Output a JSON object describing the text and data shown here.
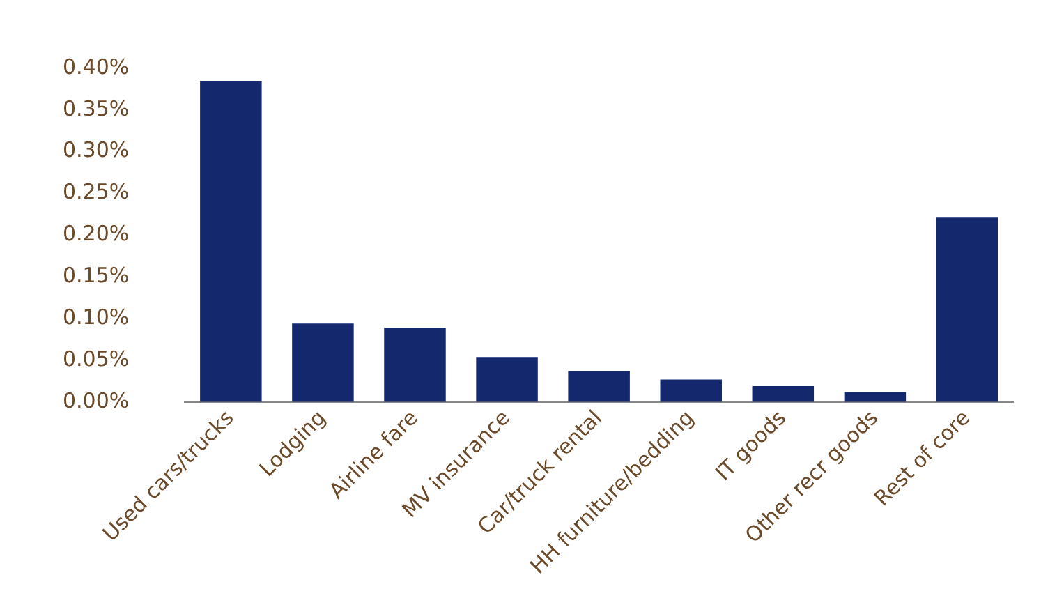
{
  "chart_data": {
    "type": "bar",
    "categories": [
      "Used cars/trucks",
      "Lodging",
      "Airline fare",
      "MV insurance",
      "Car/truck rental",
      "HH furniture/bedding",
      "IT goods",
      "Other recr goods",
      "Rest of core"
    ],
    "values": [
      0.385,
      0.094,
      0.089,
      0.054,
      0.037,
      0.027,
      0.019,
      0.012,
      0.221
    ],
    "color": "#14286e",
    "ylim": [
      0,
      0.4
    ],
    "yticks": [
      {
        "value": 0,
        "label": "0.00%"
      },
      {
        "value": 0.05,
        "label": "0.05%"
      },
      {
        "value": 0.1,
        "label": "0.10%"
      },
      {
        "value": 0.15,
        "label": "0.15%"
      },
      {
        "value": 0.2,
        "label": "0.20%"
      },
      {
        "value": 0.25,
        "label": "0.25%"
      },
      {
        "value": 0.3,
        "label": "0.30%"
      },
      {
        "value": 0.35,
        "label": "0.35%"
      },
      {
        "value": 0.4,
        "label": "0.40%"
      }
    ],
    "grid": false,
    "legend": false
  }
}
